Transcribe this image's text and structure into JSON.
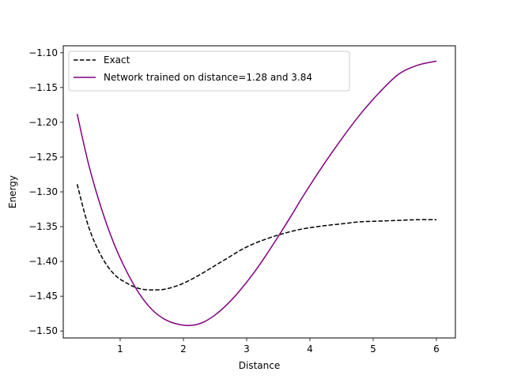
{
  "chart_data": {
    "type": "line",
    "title": "",
    "xlabel": "Distance",
    "ylabel": "Energy",
    "xlim": [
      0.1,
      6.3
    ],
    "ylim": [
      -1.51,
      -1.09
    ],
    "xticks": [
      1,
      2,
      3,
      4,
      5,
      6
    ],
    "xtick_labels": [
      "1",
      "2",
      "3",
      "4",
      "5",
      "6"
    ],
    "yticks": [
      -1.1,
      -1.15,
      -1.2,
      -1.25,
      -1.3,
      -1.35,
      -1.4,
      -1.45,
      -1.5
    ],
    "ytick_labels": [
      "−1.10",
      "−1.15",
      "−1.20",
      "−1.25",
      "−1.30",
      "−1.35",
      "−1.40",
      "−1.45",
      "−1.50"
    ],
    "grid": false,
    "legend_position": "top-left",
    "series": [
      {
        "name": "Exact",
        "color": "#000000",
        "style": "dashed",
        "x": [
          0.32,
          0.5,
          0.7,
          0.9,
          1.1,
          1.3,
          1.5,
          1.7,
          1.9,
          2.1,
          2.3,
          2.5,
          2.7,
          2.9,
          3.1,
          3.3,
          3.5,
          3.7,
          3.9,
          4.2,
          4.5,
          4.8,
          5.1,
          5.4,
          5.7,
          6.0
        ],
        "y": [
          -1.289,
          -1.35,
          -1.392,
          -1.418,
          -1.431,
          -1.439,
          -1.441,
          -1.44,
          -1.435,
          -1.427,
          -1.417,
          -1.406,
          -1.395,
          -1.384,
          -1.375,
          -1.368,
          -1.362,
          -1.357,
          -1.353,
          -1.349,
          -1.346,
          -1.343,
          -1.342,
          -1.341,
          -1.34,
          -1.34
        ]
      },
      {
        "name": "Network trained on distance=1.28 and 3.84",
        "color": "#800080",
        "style": "solid",
        "x": [
          0.32,
          0.5,
          0.7,
          0.9,
          1.1,
          1.3,
          1.5,
          1.7,
          1.9,
          2.1,
          2.3,
          2.5,
          2.7,
          2.9,
          3.1,
          3.3,
          3.5,
          3.7,
          3.9,
          4.2,
          4.5,
          4.8,
          5.1,
          5.4,
          5.7,
          6.0
        ],
        "y": [
          -1.188,
          -1.26,
          -1.323,
          -1.374,
          -1.414,
          -1.446,
          -1.469,
          -1.483,
          -1.49,
          -1.492,
          -1.488,
          -1.477,
          -1.461,
          -1.441,
          -1.418,
          -1.392,
          -1.364,
          -1.335,
          -1.305,
          -1.263,
          -1.224,
          -1.188,
          -1.157,
          -1.131,
          -1.118,
          -1.112
        ]
      }
    ]
  }
}
